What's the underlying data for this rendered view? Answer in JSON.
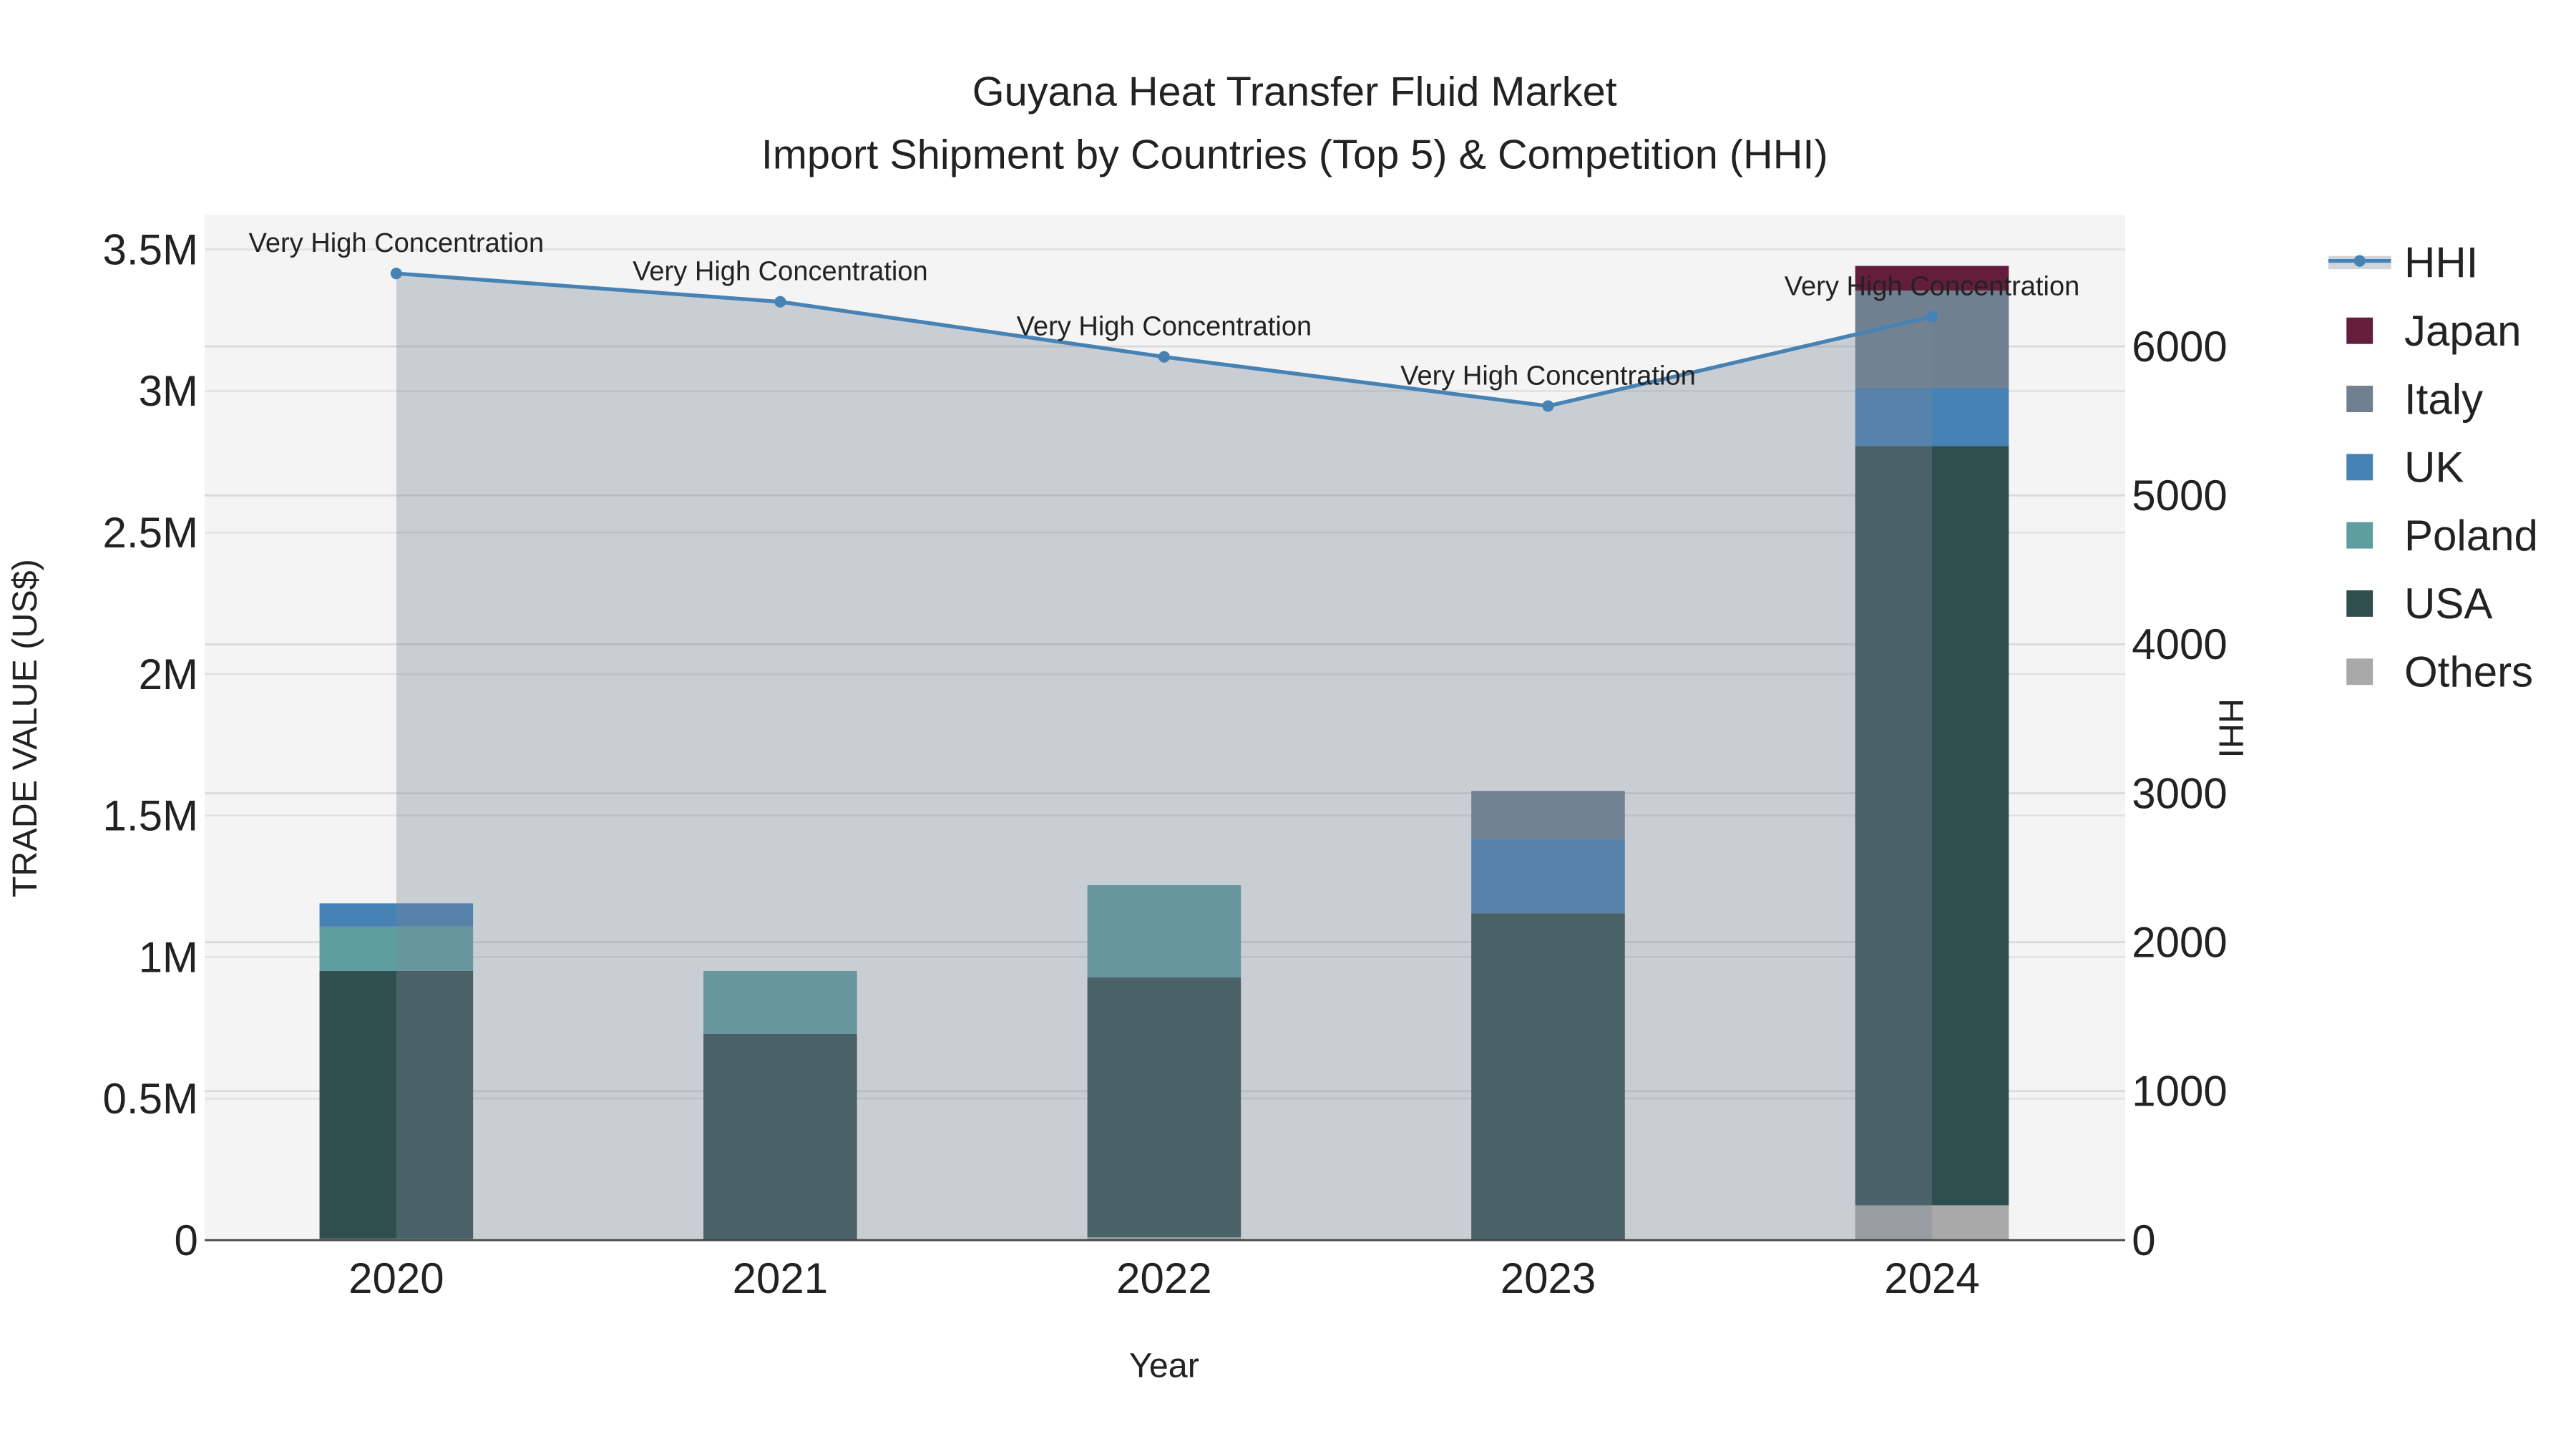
{
  "chart_data": {
    "type": "bar",
    "title": "Guyana Heat Transfer Fluid Market",
    "subtitle": "Import Shipment by Countries (Top 5) & Competition (HHI)",
    "xlabel": "Year",
    "ylabel": "TRADE VALUE (US$)",
    "y2label": "HHI",
    "categories": [
      "2020",
      "2021",
      "2022",
      "2023",
      "2024"
    ],
    "ylim": [
      0,
      3600000
    ],
    "y2lim": [
      0,
      6850
    ],
    "yticks": [
      0,
      500000,
      1000000,
      1500000,
      2000000,
      2500000,
      3000000,
      3500000
    ],
    "ytick_labels": [
      "0",
      "0.5M",
      "1M",
      "1.5M",
      "2M",
      "2.5M",
      "3M",
      "3.5M"
    ],
    "y2ticks": [
      0,
      1000,
      2000,
      3000,
      4000,
      5000,
      6000
    ],
    "y2tick_labels": [
      "0",
      "1000",
      "2000",
      "3000",
      "4000",
      "5000",
      "6000"
    ],
    "grid": true,
    "barmode": "stack",
    "legend_placement": "right",
    "series": [
      {
        "name": "Others",
        "color": "#A9A9A9",
        "values": [
          5000,
          0,
          10000,
          0,
          123000
        ]
      },
      {
        "name": "USA",
        "color": "#2F4F4F",
        "values": [
          946000,
          729000,
          918000,
          1155000,
          2683000
        ]
      },
      {
        "name": "Poland",
        "color": "#5F9EA0",
        "values": [
          157000,
          222000,
          326000,
          0,
          0
        ]
      },
      {
        "name": "UK",
        "color": "#4682B4",
        "values": [
          82000,
          0,
          0,
          263000,
          204000
        ]
      },
      {
        "name": "Italy",
        "color": "#708090",
        "values": [
          0,
          0,
          0,
          169000,
          345000
        ]
      },
      {
        "name": "Japan",
        "color": "#641E3C",
        "values": [
          0,
          0,
          0,
          0,
          87000
        ]
      }
    ],
    "hhi": {
      "name": "HHI",
      "color": "#4682B4",
      "values": [
        6490,
        6300,
        5930,
        5600,
        6200
      ],
      "annotations": [
        "Very High Concentration",
        "Very High Concentration",
        "Very High Concentration",
        "Very High Concentration",
        "Very High Concentration"
      ]
    },
    "legend_order": [
      "HHI",
      "Japan",
      "Italy",
      "UK",
      "Poland",
      "USA",
      "Others"
    ]
  }
}
